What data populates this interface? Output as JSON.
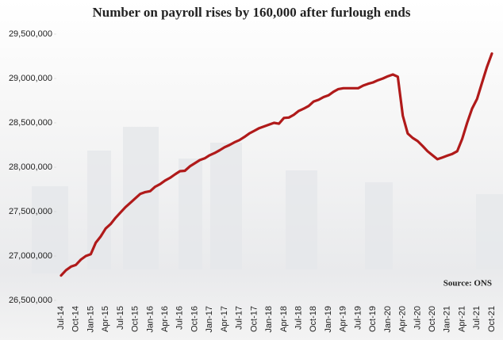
{
  "chart_data": {
    "type": "line",
    "title": "Number on payroll rises by 160,000 after furlough ends",
    "annotation": "Source: ONS",
    "categories": [
      "Jul-14",
      null,
      null,
      "Oct-14",
      null,
      null,
      "Jan-15",
      null,
      null,
      "Apr-15",
      null,
      null,
      "Jul-15",
      null,
      null,
      "Oct-15",
      null,
      null,
      "Jan-16",
      null,
      null,
      "Apr-16",
      null,
      null,
      "Jul-16",
      null,
      null,
      "Oct-16",
      null,
      null,
      "Jan-17",
      null,
      null,
      "Apr-17",
      null,
      null,
      "Jul-17",
      null,
      null,
      "Oct-17",
      null,
      null,
      "Jan-18",
      null,
      null,
      "Apr-18",
      null,
      null,
      "Jul-18",
      null,
      null,
      "Oct-18",
      null,
      null,
      "Jan-19",
      null,
      null,
      "Apr-19",
      null,
      null,
      "Jul-19",
      null,
      null,
      "Oct-19",
      null,
      null,
      "Jan-20",
      null,
      null,
      "Apr-20",
      null,
      null,
      "Jul-20",
      null,
      null,
      "Oct-20",
      null,
      null,
      "Jan-21",
      null,
      null,
      "Apr-21",
      null,
      null,
      "Jul-21",
      null,
      null,
      "Oct-21"
    ],
    "series": [
      {
        "color": "#b01a1a",
        "values": [
          26780000,
          26840000,
          26880000,
          26900000,
          26960000,
          27000000,
          27020000,
          27150000,
          27220000,
          27310000,
          27360000,
          27430000,
          27490000,
          27550000,
          27600000,
          27650000,
          27700000,
          27720000,
          27730000,
          27780000,
          27810000,
          27850000,
          27880000,
          27920000,
          27955000,
          27960000,
          28010000,
          28045000,
          28080000,
          28100000,
          28135000,
          28160000,
          28190000,
          28225000,
          28250000,
          28280000,
          28305000,
          28340000,
          28380000,
          28410000,
          28440000,
          28460000,
          28480000,
          28500000,
          28490000,
          28555000,
          28560000,
          28590000,
          28635000,
          28660000,
          28690000,
          28740000,
          28760000,
          28790000,
          28810000,
          28850000,
          28880000,
          28890000,
          28890000,
          28890000,
          28890000,
          28920000,
          28940000,
          28955000,
          28980000,
          29000000,
          29025000,
          29045000,
          29020000,
          28580000,
          28380000,
          28330000,
          28295000,
          28240000,
          28180000,
          28135000,
          28090000,
          28110000,
          28130000,
          28150000,
          28180000,
          28320000,
          28500000,
          28660000,
          28770000,
          28950000,
          29130000,
          29280000
        ]
      }
    ],
    "ylim": [
      26500000,
      29500000
    ],
    "yticks": [
      {
        "value": 26500000,
        "label": "26,500,000"
      },
      {
        "value": 27000000,
        "label": "27,000,000"
      },
      {
        "value": 27500000,
        "label": "27,500,000"
      },
      {
        "value": 28000000,
        "label": "28,000,000"
      },
      {
        "value": 28500000,
        "label": "28,500,000"
      },
      {
        "value": 29000000,
        "label": "29,000,000"
      },
      {
        "value": 29500000,
        "label": "29,500,000"
      }
    ]
  }
}
